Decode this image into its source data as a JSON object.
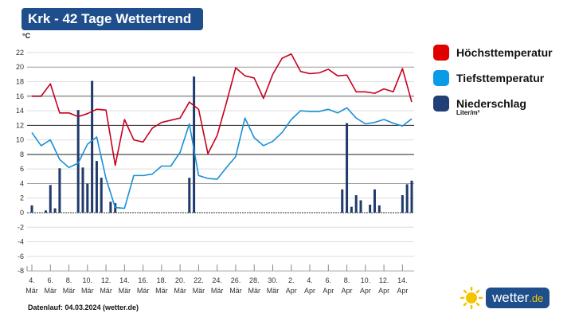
{
  "header": {
    "title": "Krk - 42 Tage Wettertrend"
  },
  "legend": {
    "items": [
      {
        "label": "Höchsttemperatur",
        "color": "#e00000"
      },
      {
        "label": "Tiefsttemperatur",
        "color": "#0a9be6"
      },
      {
        "label": "Niederschlag",
        "color": "#1f3f75"
      }
    ],
    "unit": "Liter/m²"
  },
  "footer": {
    "text": "Datenlauf: 04.03.2024 (wetter.de)"
  },
  "logo": {
    "text": "wetter",
    "suffix": ".de",
    "icon": "sun-icon"
  },
  "chart_data": {
    "type": "line+bar",
    "ylabel": "°C",
    "ylim": [
      -8,
      22
    ],
    "yticks": [
      22,
      20,
      18,
      16,
      14,
      12,
      10,
      8,
      6,
      4,
      2,
      0,
      -2,
      -4,
      -6,
      -8
    ],
    "grid": true,
    "legend_position": "right",
    "xtick_labels": [
      [
        "4.",
        "Mär"
      ],
      [
        "6.",
        "Mär"
      ],
      [
        "8.",
        "Mär"
      ],
      [
        "10.",
        "Mär"
      ],
      [
        "12.",
        "Mär"
      ],
      [
        "14.",
        "Mär"
      ],
      [
        "16.",
        "Mär"
      ],
      [
        "18.",
        "Mär"
      ],
      [
        "20.",
        "Mär"
      ],
      [
        "22.",
        "Mär"
      ],
      [
        "24.",
        "Mär"
      ],
      [
        "26.",
        "Mär"
      ],
      [
        "28.",
        "Mär"
      ],
      [
        "30.",
        "Mär"
      ],
      [
        "2.",
        "Apr"
      ],
      [
        "4.",
        "Apr"
      ],
      [
        "6.",
        "Apr"
      ],
      [
        "8.",
        "Apr"
      ],
      [
        "10.",
        "Apr"
      ],
      [
        "12.",
        "Apr"
      ],
      [
        "14.",
        "Apr"
      ]
    ],
    "dates": [
      "2024-03-04",
      "2024-03-05",
      "2024-03-06",
      "2024-03-07",
      "2024-03-08",
      "2024-03-09",
      "2024-03-10",
      "2024-03-11",
      "2024-03-12",
      "2024-03-13",
      "2024-03-14",
      "2024-03-15",
      "2024-03-16",
      "2024-03-17",
      "2024-03-18",
      "2024-03-19",
      "2024-03-20",
      "2024-03-21",
      "2024-03-22",
      "2024-03-23",
      "2024-03-24",
      "2024-03-25",
      "2024-03-26",
      "2024-03-27",
      "2024-03-28",
      "2024-03-29",
      "2024-03-30",
      "2024-03-31",
      "2024-04-01",
      "2024-04-02",
      "2024-04-03",
      "2024-04-04",
      "2024-04-05",
      "2024-04-06",
      "2024-04-07",
      "2024-04-08",
      "2024-04-09",
      "2024-04-10",
      "2024-04-11",
      "2024-04-12",
      "2024-04-13",
      "2024-04-14"
    ],
    "series": [
      {
        "name": "Höchsttemperatur",
        "color": "#c8001e",
        "values": [
          16,
          16,
          17.7,
          13.7,
          13.7,
          13.2,
          13.6,
          14.2,
          14.1,
          6.5,
          12.8,
          10,
          9.7,
          11.6,
          12.4,
          12.7,
          13,
          15.2,
          14.2,
          8.1,
          10.6,
          15.1,
          19.9,
          18.8,
          18.5,
          15.7,
          19,
          21.2,
          21.8,
          19.4,
          19.1,
          19.2,
          19.7,
          18.8,
          18.9,
          16.6,
          16.6,
          16.4,
          17,
          16.6,
          19.8,
          15.2
        ]
      },
      {
        "name": "Tiefsttemperatur",
        "color": "#1a8fd6",
        "values": [
          11,
          9.2,
          10,
          7.3,
          6.2,
          6.8,
          9.4,
          10.4,
          4.7,
          0.7,
          0.6,
          5.1,
          5.1,
          5.3,
          6.4,
          6.4,
          8.3,
          12.2,
          5.1,
          4.7,
          4.6,
          6.2,
          7.7,
          13,
          10.3,
          9.2,
          9.8,
          11,
          12.8,
          14,
          13.9,
          13.9,
          14.2,
          13.7,
          14.4,
          13,
          12.2,
          12.4,
          12.8,
          12.3,
          11.9,
          12.9
        ]
      }
    ],
    "precipitation": {
      "name": "Niederschlag",
      "unit": "Liter/m²",
      "color": "#1f3a6b",
      "values": [
        {
          "datetime": "2024-03-04T00:00",
          "value": 1.0
        },
        {
          "datetime": "2024-03-05T12:00",
          "value": 0.3
        },
        {
          "datetime": "2024-03-06T00:00",
          "value": 3.8
        },
        {
          "datetime": "2024-03-06T12:00",
          "value": 0.6
        },
        {
          "datetime": "2024-03-07T00:00",
          "value": 6.1
        },
        {
          "datetime": "2024-03-09T00:00",
          "value": 14.1
        },
        {
          "datetime": "2024-03-09T12:00",
          "value": 6.2
        },
        {
          "datetime": "2024-03-10T00:00",
          "value": 4.0
        },
        {
          "datetime": "2024-03-10T12:00",
          "value": 18.1
        },
        {
          "datetime": "2024-03-11T00:00",
          "value": 7.1
        },
        {
          "datetime": "2024-03-11T12:00",
          "value": 4.8
        },
        {
          "datetime": "2024-03-12T12:00",
          "value": 1.5
        },
        {
          "datetime": "2024-03-13T00:00",
          "value": 1.3
        },
        {
          "datetime": "2024-03-21T00:00",
          "value": 4.8
        },
        {
          "datetime": "2024-03-21T12:00",
          "value": 18.7
        },
        {
          "datetime": "2024-04-06T12:00",
          "value": 3.2
        },
        {
          "datetime": "2024-04-07T00:00",
          "value": 12.3
        },
        {
          "datetime": "2024-04-07T12:00",
          "value": 0.8
        },
        {
          "datetime": "2024-04-08T00:00",
          "value": 2.4
        },
        {
          "datetime": "2024-04-08T12:00",
          "value": 1.7
        },
        {
          "datetime": "2024-04-09T12:00",
          "value": 1.1
        },
        {
          "datetime": "2024-04-10T00:00",
          "value": 3.2
        },
        {
          "datetime": "2024-04-10T12:00",
          "value": 1.0
        },
        {
          "datetime": "2024-04-13T00:00",
          "value": 2.4
        },
        {
          "datetime": "2024-04-13T12:00",
          "value": 3.9
        },
        {
          "datetime": "2024-04-14T00:00",
          "value": 4.4
        }
      ]
    }
  }
}
